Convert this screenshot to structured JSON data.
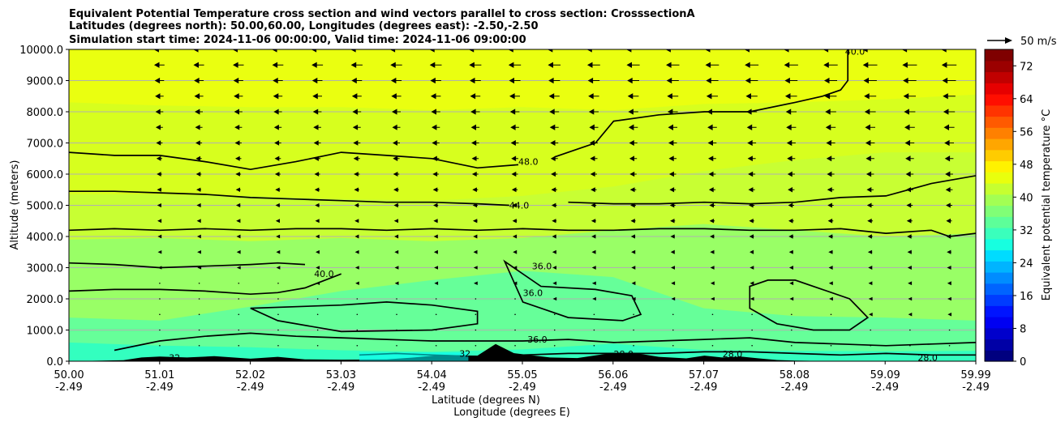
{
  "chart_data": {
    "type": "contour",
    "title_lines": [
      "Equivalent Potential Temperature cross section and wind vectors parallel to cross section: CrosssectionA",
      "Latitudes (degrees north): 50.00,60.00, Longitudes (degrees east): -2.50,-2.50",
      "Simulation start time: 2024-11-06 00:00:00, Valid time: 2024-11-06 09:00:00"
    ],
    "ylabel": "Altitude (meters)",
    "xlabel_lat": "Latitude (degrees N)",
    "xlabel_lon": "Longitude (degrees E)",
    "ylim": [
      0,
      10000
    ],
    "yticks": [
      {
        "value": 0,
        "label": "0.0"
      },
      {
        "value": 1000,
        "label": "1000.0"
      },
      {
        "value": 2000,
        "label": "2000.0"
      },
      {
        "value": 3000,
        "label": "3000.0"
      },
      {
        "value": 4000,
        "label": "4000.0"
      },
      {
        "value": 5000,
        "label": "5000.0"
      },
      {
        "value": 6000,
        "label": "6000.0"
      },
      {
        "value": 7000,
        "label": "7000.0"
      },
      {
        "value": 8000,
        "label": "8000.0"
      },
      {
        "value": 9000,
        "label": "9000.0"
      },
      {
        "value": 10000,
        "label": "10000.0"
      }
    ],
    "xlim": [
      50.0,
      59.99
    ],
    "xticks": [
      {
        "lat": "50.00",
        "lon": "-2.49"
      },
      {
        "lat": "51.01",
        "lon": "-2.49"
      },
      {
        "lat": "52.02",
        "lon": "-2.49"
      },
      {
        "lat": "53.03",
        "lon": "-2.49"
      },
      {
        "lat": "54.04",
        "lon": "-2.49"
      },
      {
        "lat": "55.05",
        "lon": "-2.49"
      },
      {
        "lat": "56.06",
        "lon": "-2.49"
      },
      {
        "lat": "57.07",
        "lon": "-2.49"
      },
      {
        "lat": "58.08",
        "lon": "-2.49"
      },
      {
        "lat": "59.09",
        "lon": "-2.49"
      },
      {
        "lat": "59.99",
        "lon": "-2.49"
      }
    ],
    "gridlines": "horizontal",
    "field_layers": [
      {
        "theta": 48,
        "color": "#d7ff1e",
        "height": [
          8300,
          8200,
          8150,
          8150,
          8050,
          8150,
          8050,
          8250,
          8300,
          8400,
          8550
        ]
      },
      {
        "theta": 44,
        "color": "#c8ff33",
        "height": [
          5350,
          5350,
          5300,
          5200,
          5150,
          5300,
          5600,
          6100,
          6450,
          6700,
          6700
        ]
      },
      {
        "theta": 40,
        "color": "#99ff66",
        "height": [
          3900,
          3950,
          3850,
          3950,
          3850,
          3950,
          4200,
          4400,
          4200,
          4000,
          4100
        ]
      },
      {
        "theta": 36,
        "color": "#66ff99",
        "height": [
          1400,
          1300,
          1750,
          2250,
          2600,
          2900,
          2700,
          1700,
          1450,
          1400,
          1300
        ]
      },
      {
        "theta": 32,
        "color": "#33ffbf",
        "height": [
          600,
          500,
          450,
          350,
          300,
          380,
          560,
          360,
          330,
          320,
          330
        ]
      }
    ],
    "contour_lines": [
      {
        "label": "48.0",
        "x": [
          50.0,
          50.5,
          51.0,
          51.5,
          52.0,
          52.5,
          53.0,
          53.5,
          54.0,
          54.5,
          54.95
        ],
        "y": [
          6700,
          6600,
          6600,
          6400,
          6150,
          6400,
          6700,
          6600,
          6500,
          6200,
          6300
        ]
      },
      {
        "label": "48.0",
        "x": [
          55.35,
          55.6,
          55.8,
          56.0,
          56.5,
          57.0,
          57.5,
          58.0,
          58.3,
          58.5,
          58.58,
          58.58
        ],
        "y": [
          6550,
          6800,
          7000,
          7700,
          7900,
          8000,
          8000,
          8300,
          8500,
          8700,
          9000,
          10000
        ]
      },
      {
        "label": "44.0",
        "x": [
          50.0,
          50.5,
          51.0,
          51.5,
          52.0,
          52.5,
          53.0,
          53.5,
          54.0,
          54.5,
          54.85
        ],
        "y": [
          5450,
          5450,
          5400,
          5350,
          5250,
          5200,
          5150,
          5100,
          5100,
          5050,
          5000
        ]
      },
      {
        "label": "44.0",
        "x": [
          55.5,
          56.0,
          56.5,
          57.0,
          57.5,
          58.0,
          58.5,
          59.0,
          59.5,
          59.99
        ],
        "y": [
          5100,
          5050,
          5050,
          5100,
          5050,
          5100,
          5250,
          5300,
          5700,
          5950
        ]
      },
      {
        "label": "40.0",
        "x": [
          50.0,
          50.5,
          51.0,
          51.5,
          52.0,
          52.5,
          53.0,
          53.5,
          54.0,
          54.5,
          55.0,
          55.5,
          56.0,
          56.5,
          57.0,
          57.5,
          58.0,
          58.5,
          59.0,
          59.5,
          59.7,
          59.99
        ],
        "y": [
          4200,
          4250,
          4200,
          4250,
          4200,
          4250,
          4250,
          4200,
          4250,
          4200,
          4250,
          4200,
          4200,
          4250,
          4250,
          4200,
          4200,
          4250,
          4100,
          4200,
          4000,
          4100
        ]
      },
      {
        "label": "36.0",
        "x": [
          50.0,
          50.5,
          51.0,
          51.5,
          52.0,
          52.3,
          52.6
        ],
        "y": [
          3150,
          3100,
          3000,
          3050,
          3100,
          3150,
          3100
        ]
      },
      {
        "label": "40.0",
        "x": [
          50.0,
          50.5,
          51.0,
          51.5,
          52.0,
          52.3,
          52.6,
          53.0
        ],
        "y": [
          2250,
          2300,
          2300,
          2250,
          2150,
          2200,
          2350,
          2800
        ]
      }
    ],
    "closed_contours": [
      {
        "label": "36.0",
        "x": [
          54.8,
          55.2,
          55.8,
          56.2,
          56.3,
          56.1,
          55.5,
          55.0,
          54.8
        ],
        "y": [
          3200,
          2400,
          2300,
          2100,
          1500,
          1300,
          1400,
          1900,
          3200
        ]
      },
      {
        "label": "",
        "x": [
          53.0,
          53.5,
          54.0,
          54.5,
          54.5,
          54.0,
          53.0,
          52.3,
          52.0,
          53.0
        ],
        "y": [
          1800,
          1900,
          1800,
          1600,
          1200,
          1000,
          950,
          1300,
          1700,
          1800
        ]
      },
      {
        "label": "",
        "x": [
          57.5,
          57.7,
          58.0,
          58.3,
          58.6,
          58.8,
          58.6,
          58.2,
          57.8,
          57.5,
          57.5
        ],
        "y": [
          2400,
          2600,
          2600,
          2300,
          2000,
          1400,
          1000,
          1000,
          1200,
          1700,
          2400
        ]
      }
    ],
    "low_contours": [
      {
        "label": "36.0",
        "x": [
          50.5,
          51.0,
          51.5,
          52.0,
          52.5,
          53.0,
          53.5,
          54.0,
          54.5,
          55.0,
          55.5,
          56.0,
          56.5,
          57.0,
          57.5,
          58.0,
          58.5,
          59.0,
          59.5,
          59.99
        ],
        "y": [
          350,
          650,
          800,
          900,
          800,
          750,
          700,
          650,
          650,
          650,
          700,
          600,
          650,
          700,
          750,
          600,
          550,
          500,
          550,
          600
        ]
      },
      {
        "label": "28.0",
        "x": [
          53.2,
          53.6,
          54.0,
          54.5,
          55.0,
          55.5,
          56.0,
          56.5,
          57.0,
          57.5,
          58.0,
          58.5,
          59.0,
          59.5,
          59.99
        ],
        "y": [
          200,
          250,
          200,
          150,
          200,
          250,
          250,
          250,
          300,
          300,
          250,
          200,
          250,
          200,
          200
        ]
      }
    ],
    "contour_label_texts": [
      {
        "text": "48.0",
        "x": 54.95,
        "y": 6400
      },
      {
        "text": "44.0",
        "x": 54.85,
        "y": 5000
      },
      {
        "text": "40.0",
        "x": 52.7,
        "y": 2800
      },
      {
        "text": "36.0",
        "x": 55.1,
        "y": 3050
      },
      {
        "text": "36.0",
        "x": 55.0,
        "y": 2200
      },
      {
        "text": "36.0",
        "x": 55.05,
        "y": 700
      },
      {
        "text": "40.0",
        "x": 58.55,
        "y": 9930
      },
      {
        "text": "28.0",
        "x": 56.0,
        "y": 230
      },
      {
        "text": "28.0",
        "x": 57.2,
        "y": 230
      },
      {
        "text": "28.0",
        "x": 59.35,
        "y": 120
      },
      {
        "text": "32",
        "x": 51.1,
        "y": 120
      },
      {
        "text": "32",
        "x": 54.3,
        "y": 250
      }
    ],
    "terrain": {
      "x": [
        50.0,
        50.6,
        50.8,
        51.0,
        51.3,
        51.6,
        52.0,
        52.3,
        52.6,
        53.0,
        53.5,
        53.8,
        54.1,
        54.5,
        54.7,
        54.9,
        55.3,
        55.6,
        55.9,
        56.2,
        56.5,
        56.8,
        57.0,
        57.2,
        57.4,
        57.6,
        57.8,
        58.0,
        58.5,
        59.0,
        59.5,
        59.99
      ],
      "y": [
        0,
        30,
        120,
        150,
        120,
        160,
        80,
        140,
        60,
        50,
        60,
        120,
        200,
        180,
        550,
        260,
        120,
        100,
        230,
        280,
        140,
        90,
        180,
        120,
        150,
        90,
        40,
        20,
        0,
        0,
        0,
        0
      ]
    },
    "wind_arrows": "vectors parallel to cross section, pointing toward lower latitude; magnitude increases with altitude",
    "wind_key_label": "50 m/s",
    "colorbar": {
      "label": "Equivalent potential temperature °C",
      "min": 0,
      "max": 76,
      "ticks": [
        "0",
        "8",
        "16",
        "24",
        "32",
        "40",
        "48",
        "56",
        "64",
        "72"
      ],
      "colors": [
        "#00007f",
        "#0000a6",
        "#0000cc",
        "#0000f2",
        "#0014ff",
        "#003cff",
        "#0064ff",
        "#008cff",
        "#00b4ff",
        "#00dcff",
        "#17ffe0",
        "#3affbc",
        "#5dff99",
        "#80ff76",
        "#a3ff53",
        "#c6ff30",
        "#e9ff0d",
        "#fff200",
        "#ffcc00",
        "#ffa600",
        "#ff8000",
        "#ff5a00",
        "#ff3400",
        "#ff0e00",
        "#e60000",
        "#c10000",
        "#9b0000",
        "#7f0000"
      ]
    }
  }
}
